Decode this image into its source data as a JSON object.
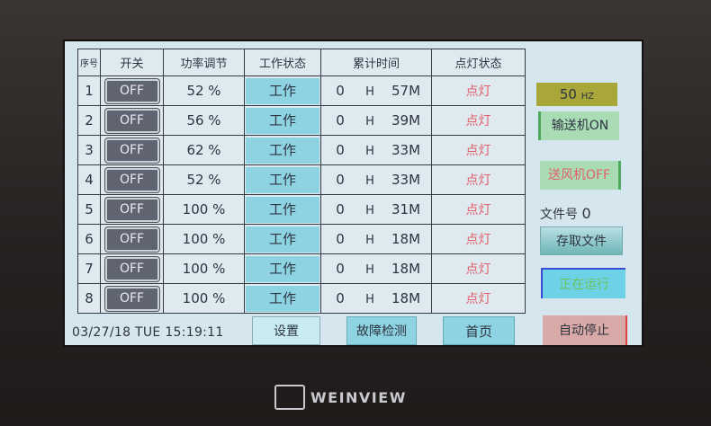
{
  "table": {
    "headers": [
      "序号",
      "开关",
      "功率调节",
      "工作状态",
      "累计时间",
      "点灯状态"
    ],
    "rows": [
      {
        "no": "1",
        "switch": "OFF",
        "power": "52 %",
        "state": "工作",
        "hours": "0",
        "h": "H",
        "minutes": "57M",
        "lamp": "点灯"
      },
      {
        "no": "2",
        "switch": "OFF",
        "power": "56 %",
        "state": "工作",
        "hours": "0",
        "h": "H",
        "minutes": "39M",
        "lamp": "点灯"
      },
      {
        "no": "3",
        "switch": "OFF",
        "power": "62 %",
        "state": "工作",
        "hours": "0",
        "h": "H",
        "minutes": "33M",
        "lamp": "点灯"
      },
      {
        "no": "4",
        "switch": "OFF",
        "power": "52 %",
        "state": "工作",
        "hours": "0",
        "h": "H",
        "minutes": "33M",
        "lamp": "点灯"
      },
      {
        "no": "5",
        "switch": "OFF",
        "power": "100 %",
        "state": "工作",
        "hours": "0",
        "h": "H",
        "minutes": "31M",
        "lamp": "点灯"
      },
      {
        "no": "6",
        "switch": "OFF",
        "power": "100 %",
        "state": "工作",
        "hours": "0",
        "h": "H",
        "minutes": "18M",
        "lamp": "点灯"
      },
      {
        "no": "7",
        "switch": "OFF",
        "power": "100 %",
        "state": "工作",
        "hours": "0",
        "h": "H",
        "minutes": "18M",
        "lamp": "点灯"
      },
      {
        "no": "8",
        "switch": "OFF",
        "power": "100 %",
        "state": "工作",
        "hours": "0",
        "h": "H",
        "minutes": "18M",
        "lamp": "点灯"
      }
    ]
  },
  "footer": {
    "datetime": "03/27/18 TUE 15:19:11",
    "settings": "设置",
    "fault_check": "故障检测",
    "home": "首页"
  },
  "side": {
    "frequency": "50",
    "frequency_unit": "HZ",
    "conveyor": "输送机ON",
    "blower": "送风机OFF",
    "file_label": "文件号",
    "file_no": "0",
    "file_access": "存取文件",
    "running": "正在运行",
    "auto_stop": "自动停止"
  },
  "brand": "WEINVIEW"
}
